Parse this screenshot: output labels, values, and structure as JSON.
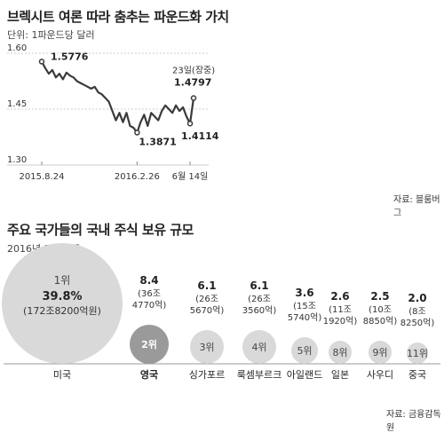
{
  "colors": {
    "line": "#3a3a3a",
    "bubble_main": "#d9d9d9",
    "bubble_uk": "#9a9a9a",
    "grid": "#cccccc"
  },
  "chart1": {
    "title": "브렉시트 여론 따라 춤추는 파운드화 가치",
    "unit": "단위: 1파운드당 달러",
    "source": "자료: 블룸버그",
    "chart_data": {
      "type": "line",
      "ylim": [
        1.3,
        1.6
      ],
      "yticks": [
        "1.60",
        "1.45",
        "1.30"
      ],
      "xticks": [
        "2015.8.24",
        "2016.2.26",
        "6월 14일"
      ],
      "x": [
        "2015.8.24",
        "2015.8.31",
        "2015.9.7",
        "2015.9.14",
        "2015.9.21",
        "2015.9.28",
        "2015.10.5",
        "2015.10.12",
        "2015.10.19",
        "2015.10.26",
        "2015.11.2",
        "2015.11.9",
        "2015.11.16",
        "2015.11.23",
        "2015.11.30",
        "2015.12.7",
        "2015.12.14",
        "2015.12.21",
        "2015.12.28",
        "2016.1.4",
        "2016.1.11",
        "2016.1.18",
        "2016.1.25",
        "2016.2.1",
        "2016.2.8",
        "2016.2.15",
        "2016.2.22",
        "2016.2.26",
        "2016.3.7",
        "2016.3.14",
        "2016.3.21",
        "2016.3.28",
        "2016.4.4",
        "2016.4.11",
        "2016.4.18",
        "2016.4.25",
        "2016.5.2",
        "2016.5.9",
        "2016.5.16",
        "2016.5.23",
        "2016.5.30",
        "2016.6.6",
        "2016.6.14",
        "2016.6.23"
      ],
      "values": [
        1.5776,
        1.56,
        1.545,
        1.555,
        1.535,
        1.545,
        1.53,
        1.548,
        1.54,
        1.535,
        1.525,
        1.52,
        1.515,
        1.51,
        1.505,
        1.51,
        1.495,
        1.49,
        1.48,
        1.47,
        1.445,
        1.42,
        1.44,
        1.415,
        1.44,
        1.405,
        1.4,
        1.3871,
        1.415,
        1.435,
        1.405,
        1.44,
        1.43,
        1.42,
        1.445,
        1.46,
        1.45,
        1.44,
        1.46,
        1.445,
        1.455,
        1.43,
        1.4114,
        1.4797
      ],
      "annotations": [
        {
          "x": "2015.8.24",
          "label": "1.5776"
        },
        {
          "x": "2016.2.26",
          "label": "1.3871"
        },
        {
          "x": "2016.6.14",
          "label": "1.4114"
        },
        {
          "x": "2016.6.23",
          "label": "1.4797",
          "note": "23일(장중)"
        }
      ]
    }
  },
  "chart2": {
    "title": "주요 국가들의 국내 주식 보유 규모",
    "subtitle": "2016년 5월 기준",
    "source": "자료: 금융감독원",
    "chart_data": {
      "type": "bubble",
      "categories": [
        "미국",
        "영국",
        "싱가포르",
        "룩셈부르크",
        "아일랜드",
        "일본",
        "사우디",
        "중국"
      ],
      "ranks": [
        "1위",
        "2위",
        "3위",
        "4위",
        "5위",
        "8위",
        "9위",
        "11위"
      ],
      "values_pct": [
        39.8,
        8.4,
        6.1,
        6.1,
        3.6,
        2.6,
        2.5,
        2.0
      ],
      "amounts": [
        "172조8200억원",
        "36조 4770억",
        "26조 5670억",
        "26조 3560억",
        "15조 5740억",
        "11조 1920억",
        "10조 8850억",
        "8조 8250억"
      ]
    },
    "labels": [
      {
        "pct": "39.8%",
        "amt": "(172조8200억원)"
      },
      {
        "pct": "8.4",
        "l1": "(36조",
        "l2": "4770억)"
      },
      {
        "pct": "6.1",
        "l1": "(26조",
        "l2": "5670억)"
      },
      {
        "pct": "6.1",
        "l1": "(26조",
        "l2": "3560억)"
      },
      {
        "pct": "3.6",
        "l1": "(15조",
        "l2": "5740억)"
      },
      {
        "pct": "2.6",
        "l1": "(11조",
        "l2": "1920억)"
      },
      {
        "pct": "2.5",
        "l1": "(10조",
        "l2": "8850억)"
      },
      {
        "pct": "2.0",
        "l1": "(8조",
        "l2": "8250억)"
      }
    ]
  }
}
